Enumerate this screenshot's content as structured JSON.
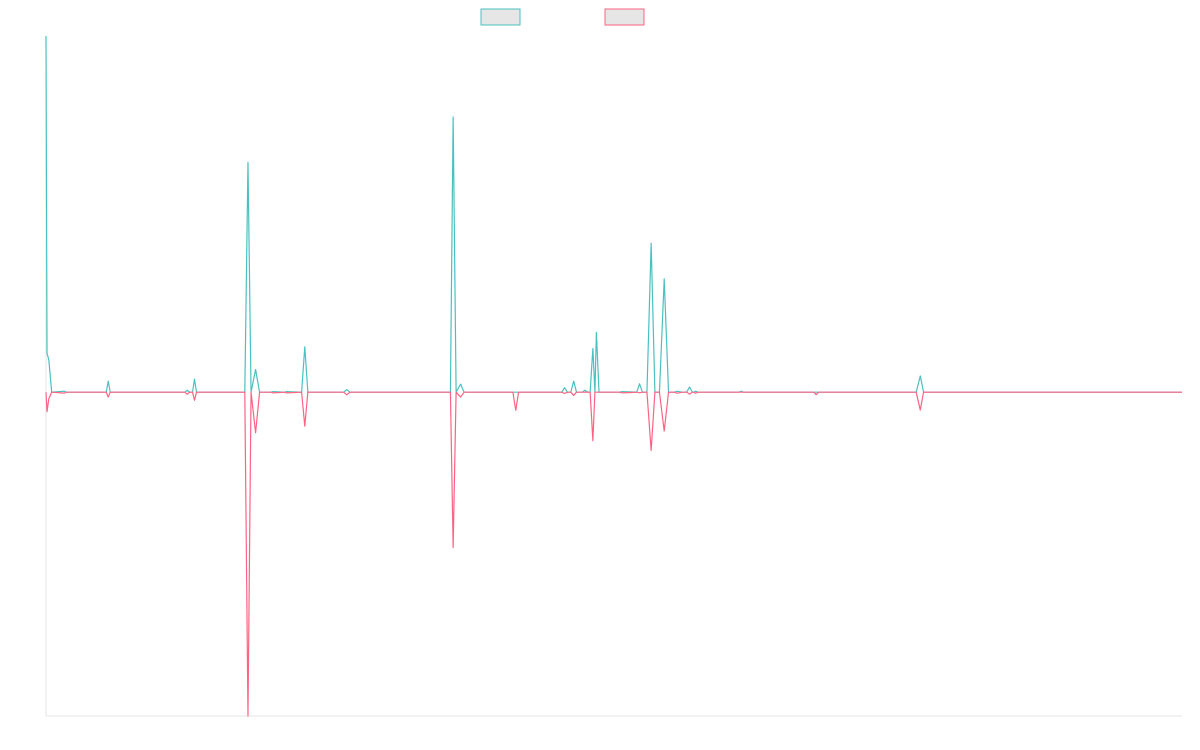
{
  "chart_data": {
    "type": "line",
    "title": "",
    "xlabel": "",
    "ylabel": "",
    "grid": false,
    "legend_placement": "top-center",
    "x_range": [
      0,
      1000
    ],
    "ylim": [
      -100,
      110
    ],
    "series": [
      {
        "color": "#4bc0c0",
        "fill": "#e6e6e6",
        "points": [
          [
            0,
            110
          ],
          [
            0.9,
            12
          ],
          [
            2.5,
            10
          ],
          [
            5,
            0
          ],
          [
            16,
            0.3
          ],
          [
            18,
            0
          ],
          [
            53,
            0
          ],
          [
            54.8,
            3.4
          ],
          [
            56.5,
            0
          ],
          [
            122,
            0
          ],
          [
            124.4,
            0.6
          ],
          [
            126.5,
            0
          ],
          [
            129,
            0
          ],
          [
            130.7,
            4
          ],
          [
            132.5,
            0
          ],
          [
            175,
            0
          ],
          [
            177.8,
            71
          ],
          [
            180.5,
            0
          ],
          [
            184.5,
            7
          ],
          [
            188,
            0
          ],
          [
            198,
            0
          ],
          [
            199.8,
            0.2
          ],
          [
            210,
            0
          ],
          [
            211.5,
            0.2
          ],
          [
            225,
            0
          ],
          [
            227.8,
            14
          ],
          [
            230.5,
            0
          ],
          [
            262,
            0
          ],
          [
            264.8,
            0.8
          ],
          [
            267.5,
            0
          ],
          [
            356,
            0
          ],
          [
            358.4,
            85
          ],
          [
            361,
            0
          ],
          [
            365,
            2.5
          ],
          [
            368,
            0
          ],
          [
            454,
            0
          ],
          [
            456.5,
            1.4
          ],
          [
            459,
            0
          ],
          [
            462,
            0
          ],
          [
            464.5,
            3.4
          ],
          [
            467,
            0
          ],
          [
            472,
            0
          ],
          [
            474.3,
            0.6
          ],
          [
            477,
            0
          ],
          [
            479,
            0
          ],
          [
            481.4,
            13.5
          ],
          [
            483.2,
            0
          ],
          [
            484.5,
            18.5
          ],
          [
            486.8,
            0
          ],
          [
            505,
            0
          ],
          [
            507,
            0.2
          ],
          [
            520,
            0
          ],
          [
            522.5,
            2.6
          ],
          [
            525,
            0
          ],
          [
            529,
            0
          ],
          [
            532.7,
            46
          ],
          [
            536,
            0
          ],
          [
            540,
            0
          ],
          [
            544.2,
            35
          ],
          [
            548,
            0
          ],
          [
            553,
            0
          ],
          [
            555.6,
            0.3
          ],
          [
            560,
            0
          ],
          [
            564,
            0
          ],
          [
            566.5,
            1.6
          ],
          [
            569,
            0
          ],
          [
            570,
            0
          ],
          [
            571.8,
            0.3
          ],
          [
            574,
            0
          ],
          [
            610,
            0
          ],
          [
            612,
            0.3
          ],
          [
            614,
            0
          ],
          [
            676,
            0
          ],
          [
            678,
            0
          ],
          [
            680,
            0
          ],
          [
            766,
            0
          ],
          [
            769.6,
            5
          ],
          [
            772.5,
            0
          ],
          [
            1000,
            0
          ]
        ]
      },
      {
        "color": "#ff6384",
        "fill": "#e6e6e6",
        "points": [
          [
            0,
            0
          ],
          [
            0.9,
            -6
          ],
          [
            2.5,
            -2
          ],
          [
            5,
            0
          ],
          [
            16,
            -0.3
          ],
          [
            18,
            0
          ],
          [
            53,
            0
          ],
          [
            54.8,
            -1.5
          ],
          [
            56.5,
            0
          ],
          [
            122,
            0
          ],
          [
            124.4,
            -0.6
          ],
          [
            126.5,
            0
          ],
          [
            129,
            0
          ],
          [
            130.7,
            -2.5
          ],
          [
            132.5,
            0
          ],
          [
            175,
            0
          ],
          [
            177.8,
            -100
          ],
          [
            180.5,
            0
          ],
          [
            184.5,
            -12.5
          ],
          [
            188,
            0
          ],
          [
            198,
            0
          ],
          [
            199.8,
            -0.2
          ],
          [
            210,
            0
          ],
          [
            211.5,
            -0.2
          ],
          [
            225,
            0
          ],
          [
            227.8,
            -10.5
          ],
          [
            230.5,
            0
          ],
          [
            262,
            0
          ],
          [
            264.8,
            -0.8
          ],
          [
            267.5,
            0
          ],
          [
            356,
            0
          ],
          [
            358.4,
            -48
          ],
          [
            361,
            0
          ],
          [
            365,
            -1.5
          ],
          [
            368,
            0
          ],
          [
            411,
            0
          ],
          [
            413.5,
            -5.6
          ],
          [
            416,
            0
          ],
          [
            454,
            0
          ],
          [
            456.5,
            -0.4
          ],
          [
            459,
            0
          ],
          [
            462,
            0
          ],
          [
            464.5,
            -1
          ],
          [
            467,
            0
          ],
          [
            479,
            0
          ],
          [
            481.4,
            -15
          ],
          [
            483.2,
            0
          ],
          [
            505,
            0
          ],
          [
            507,
            -0.2
          ],
          [
            520,
            0
          ],
          [
            522.5,
            -0.2
          ],
          [
            525,
            0
          ],
          [
            529,
            0
          ],
          [
            532.7,
            -18
          ],
          [
            536,
            0
          ],
          [
            540,
            0
          ],
          [
            544.2,
            -12
          ],
          [
            548,
            0
          ],
          [
            553,
            0
          ],
          [
            555.6,
            -0.3
          ],
          [
            560,
            0
          ],
          [
            564,
            0
          ],
          [
            566.5,
            -0.6
          ],
          [
            569,
            0
          ],
          [
            570,
            0
          ],
          [
            571.8,
            -0.3
          ],
          [
            574,
            0
          ],
          [
            676,
            0
          ],
          [
            678,
            -0.8
          ],
          [
            680,
            0
          ],
          [
            766,
            0
          ],
          [
            769.6,
            -5.5
          ],
          [
            772.5,
            0
          ],
          [
            1000,
            0
          ]
        ]
      }
    ]
  }
}
